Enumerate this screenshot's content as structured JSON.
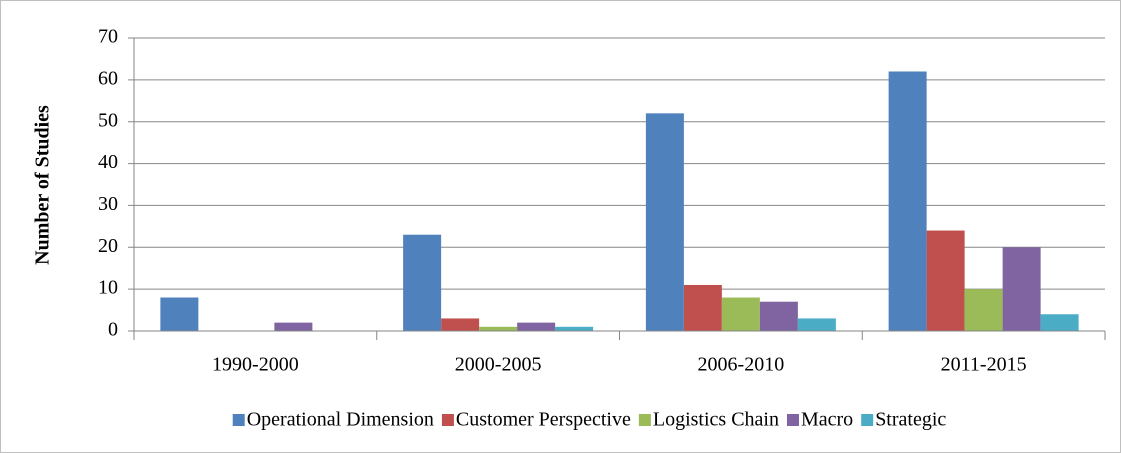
{
  "chart_data": {
    "type": "bar",
    "y_label": "Number of Studies",
    "categories": [
      "1990-2000",
      "2000-2005",
      "2006-2010",
      "2011-2015"
    ],
    "series": [
      {
        "name": "Operational Dimension",
        "color": "#4f81bd",
        "values": [
          8,
          23,
          52,
          62
        ]
      },
      {
        "name": "Customer Perspective",
        "color": "#c0504d",
        "values": [
          0,
          3,
          11,
          24
        ]
      },
      {
        "name": "Logistics Chain",
        "color": "#9bbb59",
        "values": [
          0,
          1,
          8,
          10
        ]
      },
      {
        "name": "Macro",
        "color": "#8064a2",
        "values": [
          2,
          2,
          7,
          20
        ]
      },
      {
        "name": "Strategic",
        "color": "#4bacc6",
        "values": [
          0,
          1,
          3,
          4
        ]
      }
    ],
    "ylim": [
      0,
      70
    ],
    "yticks": [
      0,
      10,
      20,
      30,
      40,
      50,
      60,
      70
    ],
    "grid": true,
    "legend": "bottom"
  }
}
